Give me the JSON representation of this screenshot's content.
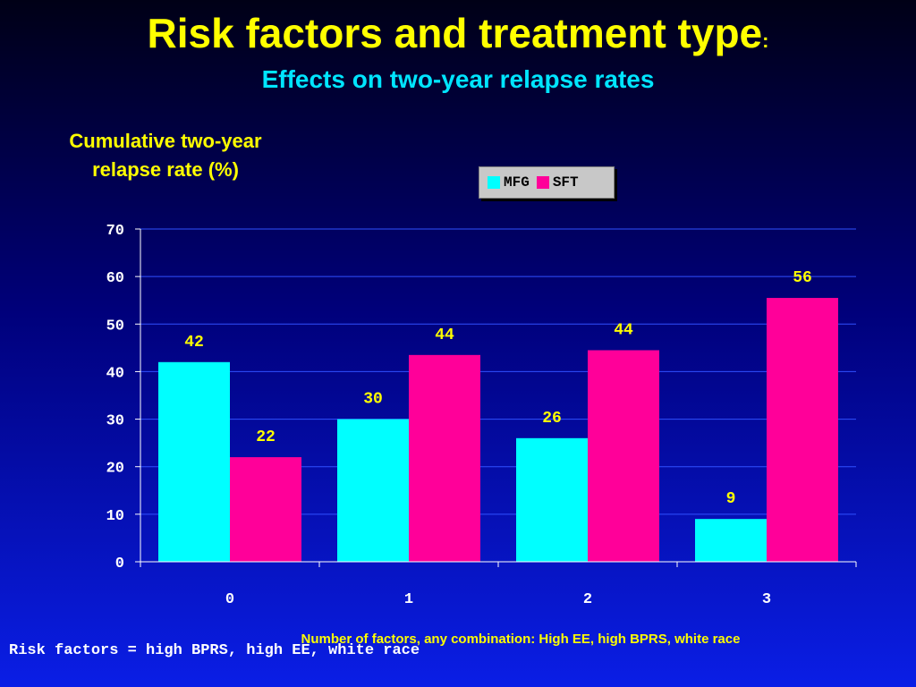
{
  "slide": {
    "title": "Risk factors and treatment type",
    "title_suffix": ":",
    "subtitle": "Effects on two-year relapse rates",
    "footnote": "Risk factors = high BPRS, high EE, white race"
  },
  "chart_data": {
    "type": "bar",
    "categories": [
      "0",
      "1",
      "2",
      "3"
    ],
    "series": [
      {
        "name": "MFG",
        "values": [
          42,
          30,
          26,
          9
        ],
        "labels": [
          "42",
          "30",
          "26",
          "9"
        ],
        "color": "#00ffff"
      },
      {
        "name": "SFT",
        "values": [
          22,
          43.5,
          44.5,
          55.5
        ],
        "labels": [
          "22",
          "44",
          "44",
          "56"
        ],
        "color": "#ff0099"
      }
    ],
    "ylabel": "Cumulative two-year relapse rate (%)",
    "xlabel": "Number of factors, any combination:  High EE, high BPRS, white race",
    "ylim": [
      0,
      70
    ],
    "yticks": [
      "0",
      "10",
      "20",
      "30",
      "40",
      "50",
      "60",
      "70"
    ],
    "grid": true,
    "legend": "top-center"
  }
}
